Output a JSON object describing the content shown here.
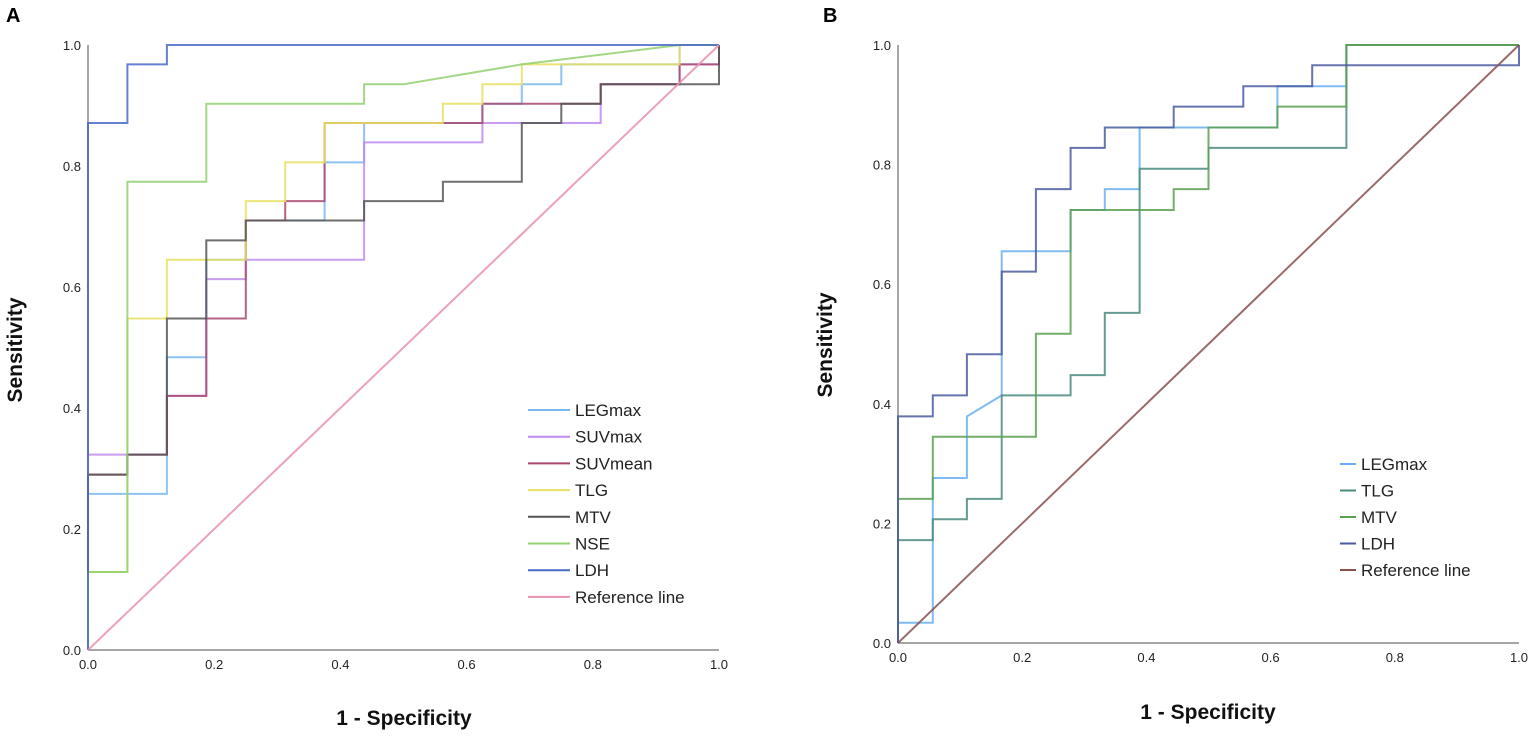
{
  "chart_data": [
    {
      "panel": "A",
      "type": "line",
      "xlabel": "1 - Specificity",
      "ylabel": "Sensitivity",
      "xlim": [
        0,
        1
      ],
      "ylim": [
        0,
        1
      ],
      "ticks": [
        "0.0",
        "0.2",
        "0.4",
        "0.6",
        "0.8",
        "1.0"
      ],
      "legend_position": "bottom-right",
      "series": [
        {
          "name": "LEGmax",
          "color": "#7ab8f0",
          "points": [
            [
              0,
              0
            ],
            [
              0,
              0.258
            ],
            [
              0.125,
              0.258
            ],
            [
              0.125,
              0.484
            ],
            [
              0.1875,
              0.484
            ],
            [
              0.1875,
              0.645
            ],
            [
              0.25,
              0.645
            ],
            [
              0.25,
              0.71
            ],
            [
              0.375,
              0.71
            ],
            [
              0.375,
              0.806
            ],
            [
              0.4375,
              0.806
            ],
            [
              0.4375,
              0.871
            ],
            [
              0.625,
              0.871
            ],
            [
              0.625,
              0.903
            ],
            [
              0.6875,
              0.903
            ],
            [
              0.6875,
              0.935
            ],
            [
              0.75,
              0.935
            ],
            [
              0.75,
              0.968
            ],
            [
              0.9375,
              0.968
            ],
            [
              0.9375,
              1
            ],
            [
              1,
              1
            ]
          ]
        },
        {
          "name": "SUVmax",
          "color": "#c08af0",
          "points": [
            [
              0,
              0
            ],
            [
              0,
              0.323
            ],
            [
              0.125,
              0.323
            ],
            [
              0.125,
              0.42
            ],
            [
              0.1875,
              0.42
            ],
            [
              0.1875,
              0.613
            ],
            [
              0.25,
              0.613
            ],
            [
              0.25,
              0.645
            ],
            [
              0.4375,
              0.645
            ],
            [
              0.4375,
              0.839
            ],
            [
              0.625,
              0.839
            ],
            [
              0.625,
              0.871
            ],
            [
              0.8125,
              0.871
            ],
            [
              0.8125,
              0.935
            ],
            [
              0.9375,
              0.935
            ],
            [
              0.9375,
              0.968
            ],
            [
              1,
              0.968
            ],
            [
              1,
              1
            ]
          ]
        },
        {
          "name": "SUVmean",
          "color": "#a8486e",
          "points": [
            [
              0,
              0
            ],
            [
              0,
              0.29
            ],
            [
              0.0625,
              0.29
            ],
            [
              0.0625,
              0.323
            ],
            [
              0.125,
              0.323
            ],
            [
              0.125,
              0.42
            ],
            [
              0.1875,
              0.42
            ],
            [
              0.1875,
              0.548
            ],
            [
              0.25,
              0.548
            ],
            [
              0.25,
              0.71
            ],
            [
              0.3125,
              0.71
            ],
            [
              0.3125,
              0.742
            ],
            [
              0.375,
              0.742
            ],
            [
              0.375,
              0.871
            ],
            [
              0.625,
              0.871
            ],
            [
              0.625,
              0.903
            ],
            [
              0.8125,
              0.903
            ],
            [
              0.8125,
              0.935
            ],
            [
              0.9375,
              0.935
            ],
            [
              0.9375,
              0.968
            ],
            [
              1,
              0.968
            ],
            [
              1,
              1
            ]
          ]
        },
        {
          "name": "TLG",
          "color": "#e8e060",
          "points": [
            [
              0,
              0
            ],
            [
              0,
              0.129
            ],
            [
              0.0625,
              0.129
            ],
            [
              0.0625,
              0.548
            ],
            [
              0.125,
              0.548
            ],
            [
              0.125,
              0.645
            ],
            [
              0.25,
              0.645
            ],
            [
              0.25,
              0.742
            ],
            [
              0.3125,
              0.742
            ],
            [
              0.3125,
              0.806
            ],
            [
              0.375,
              0.806
            ],
            [
              0.375,
              0.871
            ],
            [
              0.5625,
              0.871
            ],
            [
              0.5625,
              0.903
            ],
            [
              0.625,
              0.903
            ],
            [
              0.625,
              0.935
            ],
            [
              0.6875,
              0.935
            ],
            [
              0.6875,
              0.968
            ],
            [
              0.9375,
              0.968
            ],
            [
              0.9375,
              1
            ],
            [
              1,
              1
            ]
          ]
        },
        {
          "name": "MTV",
          "color": "#555555",
          "points": [
            [
              0,
              0
            ],
            [
              0,
              0.29
            ],
            [
              0.0625,
              0.29
            ],
            [
              0.0625,
              0.323
            ],
            [
              0.125,
              0.323
            ],
            [
              0.125,
              0.548
            ],
            [
              0.1875,
              0.548
            ],
            [
              0.1875,
              0.677
            ],
            [
              0.25,
              0.677
            ],
            [
              0.25,
              0.71
            ],
            [
              0.4375,
              0.71
            ],
            [
              0.4375,
              0.742
            ],
            [
              0.5625,
              0.742
            ],
            [
              0.5625,
              0.774
            ],
            [
              0.6875,
              0.774
            ],
            [
              0.6875,
              0.871
            ],
            [
              0.75,
              0.871
            ],
            [
              0.75,
              0.903
            ],
            [
              0.8125,
              0.903
            ],
            [
              0.8125,
              0.935
            ],
            [
              1,
              0.935
            ],
            [
              1,
              1
            ]
          ]
        },
        {
          "name": "NSE",
          "color": "#90d070",
          "points": [
            [
              0,
              0
            ],
            [
              0,
              0.129
            ],
            [
              0.0625,
              0.129
            ],
            [
              0.0625,
              0.774
            ],
            [
              0.1875,
              0.774
            ],
            [
              0.1875,
              0.903
            ],
            [
              0.4375,
              0.903
            ],
            [
              0.4375,
              0.935
            ],
            [
              0.5,
              0.935
            ],
            [
              0.6875,
              0.968
            ],
            [
              0.9375,
              1
            ],
            [
              1,
              1
            ]
          ]
        },
        {
          "name": "LDH",
          "color": "#4a6ac8",
          "points": [
            [
              0,
              0
            ],
            [
              0,
              0.871
            ],
            [
              0.0625,
              0.871
            ],
            [
              0.0625,
              0.968
            ],
            [
              0.125,
              0.968
            ],
            [
              0.125,
              1
            ],
            [
              1,
              1
            ]
          ]
        },
        {
          "name": "Reference line",
          "color": "#e890b0",
          "points": [
            [
              0,
              0
            ],
            [
              1,
              1
            ]
          ]
        }
      ]
    },
    {
      "panel": "B",
      "type": "line",
      "xlabel": "1 - Specificity",
      "ylabel": "Sensitivity",
      "xlim": [
        0,
        1
      ],
      "ylim": [
        0,
        1
      ],
      "ticks": [
        "0.0",
        "0.2",
        "0.4",
        "0.6",
        "0.8",
        "1.0"
      ],
      "legend_position": "bottom-right",
      "series": [
        {
          "name": "LEGmax",
          "color": "#6ab0f0",
          "points": [
            [
              0,
              0
            ],
            [
              0,
              0.034
            ],
            [
              0.056,
              0.034
            ],
            [
              0.056,
              0.276
            ],
            [
              0.111,
              0.276
            ],
            [
              0.111,
              0.379
            ],
            [
              0.167,
              0.414
            ],
            [
              0.167,
              0.655
            ],
            [
              0.278,
              0.655
            ],
            [
              0.278,
              0.724
            ],
            [
              0.333,
              0.724
            ],
            [
              0.333,
              0.759
            ],
            [
              0.389,
              0.759
            ],
            [
              0.389,
              0.862
            ],
            [
              0.611,
              0.862
            ],
            [
              0.611,
              0.931
            ],
            [
              0.722,
              0.931
            ],
            [
              0.722,
              1
            ],
            [
              1,
              1
            ]
          ]
        },
        {
          "name": "TLG",
          "color": "#4a8a80",
          "points": [
            [
              0,
              0
            ],
            [
              0,
              0.172
            ],
            [
              0.056,
              0.172
            ],
            [
              0.056,
              0.207
            ],
            [
              0.111,
              0.207
            ],
            [
              0.111,
              0.241
            ],
            [
              0.167,
              0.241
            ],
            [
              0.167,
              0.414
            ],
            [
              0.278,
              0.414
            ],
            [
              0.278,
              0.448
            ],
            [
              0.333,
              0.448
            ],
            [
              0.333,
              0.552
            ],
            [
              0.389,
              0.552
            ],
            [
              0.389,
              0.793
            ],
            [
              0.5,
              0.793
            ],
            [
              0.5,
              0.828
            ],
            [
              0.722,
              0.828
            ],
            [
              0.722,
              1
            ],
            [
              1,
              1
            ]
          ]
        },
        {
          "name": "MTV",
          "color": "#5aa050",
          "points": [
            [
              0,
              0
            ],
            [
              0,
              0.241
            ],
            [
              0.056,
              0.241
            ],
            [
              0.056,
              0.345
            ],
            [
              0.222,
              0.345
            ],
            [
              0.222,
              0.517
            ],
            [
              0.278,
              0.517
            ],
            [
              0.278,
              0.724
            ],
            [
              0.444,
              0.724
            ],
            [
              0.444,
              0.759
            ],
            [
              0.5,
              0.759
            ],
            [
              0.5,
              0.862
            ],
            [
              0.611,
              0.862
            ],
            [
              0.611,
              0.897
            ],
            [
              0.722,
              0.897
            ],
            [
              0.722,
              1
            ],
            [
              1,
              1
            ]
          ]
        },
        {
          "name": "LDH",
          "color": "#4a5aa0",
          "points": [
            [
              0,
              0
            ],
            [
              0,
              0.379
            ],
            [
              0.056,
              0.379
            ],
            [
              0.056,
              0.414
            ],
            [
              0.111,
              0.414
            ],
            [
              0.111,
              0.483
            ],
            [
              0.167,
              0.483
            ],
            [
              0.167,
              0.621
            ],
            [
              0.222,
              0.621
            ],
            [
              0.222,
              0.759
            ],
            [
              0.278,
              0.759
            ],
            [
              0.278,
              0.828
            ],
            [
              0.333,
              0.828
            ],
            [
              0.333,
              0.862
            ],
            [
              0.444,
              0.862
            ],
            [
              0.444,
              0.897
            ],
            [
              0.556,
              0.897
            ],
            [
              0.556,
              0.931
            ],
            [
              0.667,
              0.931
            ],
            [
              0.667,
              0.966
            ],
            [
              1,
              0.966
            ],
            [
              1,
              1
            ]
          ]
        },
        {
          "name": "Reference line",
          "color": "#8a5050",
          "points": [
            [
              0,
              0
            ],
            [
              1,
              1
            ]
          ]
        }
      ]
    }
  ]
}
